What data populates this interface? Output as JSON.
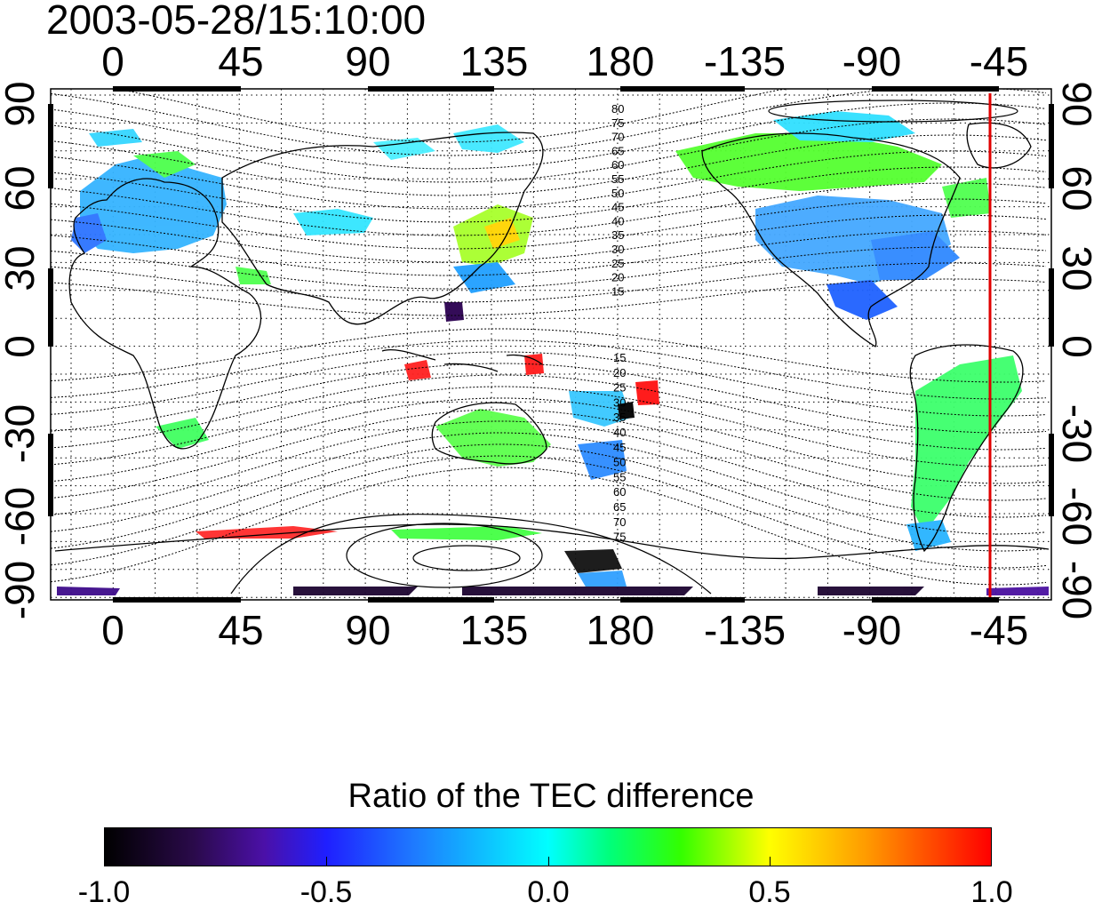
{
  "title": "2003-05-28/15:10:00",
  "lon_ticks_top": [
    "0",
    "45",
    "90",
    "135",
    "180",
    "-135",
    "-90",
    "-45"
  ],
  "lon_ticks_bottom": [
    "0",
    "45",
    "90",
    "135",
    "180",
    "-135",
    "-90",
    "-45"
  ],
  "lat_ticks_left": [
    "90",
    "60",
    "30",
    "0",
    "-30",
    "-60",
    "-90"
  ],
  "lat_ticks_right": [
    "90",
    "60",
    "30",
    "0",
    "-30",
    "-60",
    "-90"
  ],
  "contour_labels_north": [
    "80",
    "75",
    "70",
    "65",
    "60",
    "55",
    "50",
    "45",
    "40",
    "35",
    "30",
    "25",
    "20",
    "15"
  ],
  "contour_labels_south": [
    "15",
    "20",
    "25",
    "30",
    "35",
    "40",
    "45",
    "50",
    "55",
    "60",
    "65",
    "70",
    "75"
  ],
  "marker_longitude": -45,
  "colorbar": {
    "title": "Ratio of the TEC difference",
    "min": -1.0,
    "max": 1.0,
    "labels": [
      "-1.0",
      "-0.5",
      "0.0",
      "0.5",
      "1.0"
    ]
  }
}
